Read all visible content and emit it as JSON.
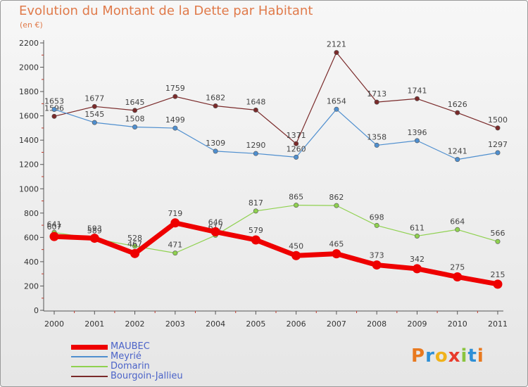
{
  "header": {
    "title": "Evolution du Montant de la Dette par Habitant",
    "subtitle": "(en €)"
  },
  "logo": {
    "text": "Proxiti",
    "colors": [
      "#e8791f",
      "#2d8fd6",
      "#f0b21a",
      "#e83a2b",
      "#8ac43f",
      "#2d8fd6",
      "#e8791f"
    ]
  },
  "chart_data": {
    "type": "line",
    "title": "Evolution du Montant de la Dette par Habitant",
    "subtitle": "(en €)",
    "xlabel": "",
    "ylabel": "",
    "ylim": [
      0,
      2200
    ],
    "yticks": [
      0,
      200,
      400,
      600,
      800,
      1000,
      1200,
      1400,
      1600,
      1800,
      2000,
      2200
    ],
    "grid": false,
    "legend_position": "bottom-left",
    "categories": [
      "2000",
      "2001",
      "2002",
      "2003",
      "2004",
      "2005",
      "2006",
      "2007",
      "2008",
      "2009",
      "2010",
      "2011"
    ],
    "series": [
      {
        "name": "MAUBEC",
        "color": "#ee0000",
        "values": [
          607,
          593,
          467,
          719,
          646,
          579,
          450,
          465,
          373,
          342,
          275,
          215
        ]
      },
      {
        "name": "Meyrié",
        "color": "#4f8fcf",
        "values": [
          1653,
          1545,
          1508,
          1499,
          1309,
          1290,
          1260,
          1654,
          1358,
          1396,
          1241,
          1297
        ]
      },
      {
        "name": "Domarin",
        "color": "#8fd14f",
        "values": [
          641,
          589,
          528,
          471,
          617,
          817,
          865,
          862,
          698,
          611,
          664,
          566
        ]
      },
      {
        "name": "Bourgoin-Jallieu",
        "color": "#7a2a2a",
        "values": [
          1596,
          1677,
          1645,
          1759,
          1682,
          1648,
          1371,
          2121,
          1713,
          1741,
          1626,
          1500
        ]
      }
    ]
  }
}
